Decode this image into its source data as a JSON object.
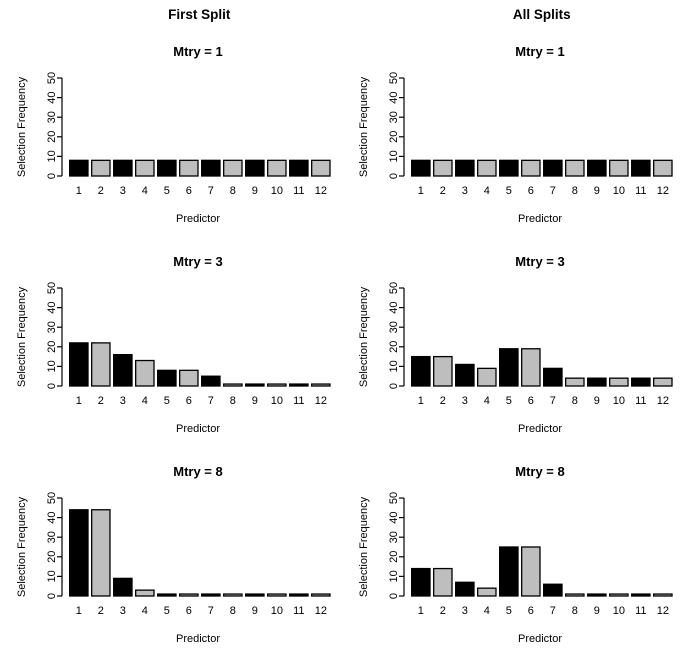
{
  "figure": {
    "description": "Random forest predictor selection frequency bar charts",
    "column_headers": [
      "First Split",
      "All Splits"
    ]
  },
  "colors": {
    "background": "#ffffff",
    "bar_odd_fill": "#000000",
    "bar_even_fill": "#bebebe",
    "bar_border": "#000000",
    "axis": "#000000",
    "text": "#000000"
  },
  "chart_data": [
    {
      "type": "bar",
      "column": "First Split",
      "title": "Mtry = 1",
      "categories": [
        "1",
        "2",
        "3",
        "4",
        "5",
        "6",
        "7",
        "8",
        "9",
        "10",
        "11",
        "12"
      ],
      "values": [
        8,
        8,
        8,
        8,
        8,
        8,
        8,
        8,
        8,
        8,
        8,
        8
      ],
      "xlabel": "Predictor",
      "ylabel": "Selection Frequency",
      "ylim": [
        0,
        50
      ],
      "yticks": [
        0,
        10,
        20,
        30,
        40,
        50
      ],
      "grid": false,
      "legend": "none"
    },
    {
      "type": "bar",
      "column": "All Splits",
      "title": "Mtry = 1",
      "categories": [
        "1",
        "2",
        "3",
        "4",
        "5",
        "6",
        "7",
        "8",
        "9",
        "10",
        "11",
        "12"
      ],
      "values": [
        8,
        8,
        8,
        8,
        8,
        8,
        8,
        8,
        8,
        8,
        8,
        8
      ],
      "xlabel": "Predictor",
      "ylabel": "Selection Frequency",
      "ylim": [
        0,
        50
      ],
      "yticks": [
        0,
        10,
        20,
        30,
        40,
        50
      ],
      "grid": false,
      "legend": "none"
    },
    {
      "type": "bar",
      "column": "First Split",
      "title": "Mtry = 3",
      "categories": [
        "1",
        "2",
        "3",
        "4",
        "5",
        "6",
        "7",
        "8",
        "9",
        "10",
        "11",
        "12"
      ],
      "values": [
        22,
        22,
        16,
        13,
        8,
        8,
        5,
        1,
        1,
        1,
        1,
        1
      ],
      "xlabel": "Predictor",
      "ylabel": "Selection Frequency",
      "ylim": [
        0,
        50
      ],
      "yticks": [
        0,
        10,
        20,
        30,
        40,
        50
      ],
      "grid": false,
      "legend": "none"
    },
    {
      "type": "bar",
      "column": "All Splits",
      "title": "Mtry = 3",
      "categories": [
        "1",
        "2",
        "3",
        "4",
        "5",
        "6",
        "7",
        "8",
        "9",
        "10",
        "11",
        "12"
      ],
      "values": [
        15,
        15,
        11,
        9,
        19,
        19,
        9,
        4,
        4,
        4,
        4,
        4
      ],
      "xlabel": "Predictor",
      "ylabel": "Selection Frequency",
      "ylim": [
        0,
        50
      ],
      "yticks": [
        0,
        10,
        20,
        30,
        40,
        50
      ],
      "grid": false,
      "legend": "none"
    },
    {
      "type": "bar",
      "column": "First Split",
      "title": "Mtry = 8",
      "categories": [
        "1",
        "2",
        "3",
        "4",
        "5",
        "6",
        "7",
        "8",
        "9",
        "10",
        "11",
        "12"
      ],
      "values": [
        44,
        44,
        9,
        3,
        1,
        1,
        1,
        1,
        1,
        1,
        1,
        1
      ],
      "xlabel": "Predictor",
      "ylabel": "Selection Frequency",
      "ylim": [
        0,
        50
      ],
      "yticks": [
        0,
        10,
        20,
        30,
        40,
        50
      ],
      "grid": false,
      "legend": "none"
    },
    {
      "type": "bar",
      "column": "All Splits",
      "title": "Mtry = 8",
      "categories": [
        "1",
        "2",
        "3",
        "4",
        "5",
        "6",
        "7",
        "8",
        "9",
        "10",
        "11",
        "12"
      ],
      "values": [
        14,
        14,
        7,
        4,
        25,
        25,
        6,
        1,
        1,
        1,
        1,
        1
      ],
      "xlabel": "Predictor",
      "ylabel": "Selection Frequency",
      "ylim": [
        0,
        50
      ],
      "yticks": [
        0,
        10,
        20,
        30,
        40,
        50
      ],
      "grid": false,
      "legend": "none"
    }
  ]
}
